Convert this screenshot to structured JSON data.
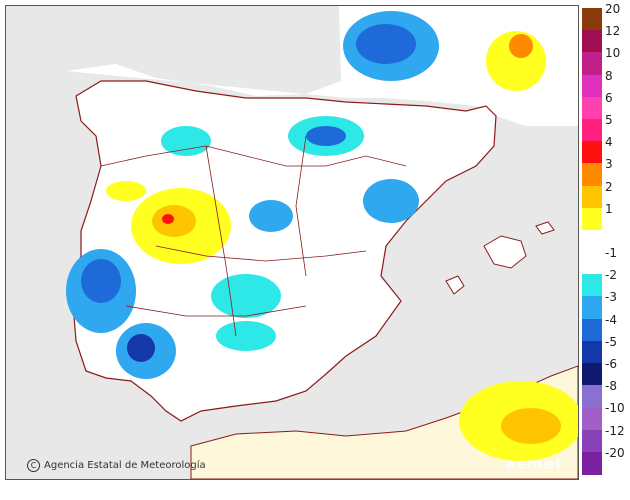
{
  "map": {
    "credit_text": "Agencia Estatal de Meteorología",
    "copyright_symbol": "C",
    "brand_text": "aemet",
    "colors": {
      "sea": "#e8e8e8",
      "land": "#ffffff",
      "africa": "#fff7d9",
      "boundary": "#8b1a1a"
    }
  },
  "legend": {
    "items": [
      {
        "label": "20",
        "color": "#8b3a0a"
      },
      {
        "label": "12",
        "color": "#a01050"
      },
      {
        "label": "10",
        "color": "#c0208a"
      },
      {
        "label": "8",
        "color": "#e030c0"
      },
      {
        "label": "6",
        "color": "#ff40b0"
      },
      {
        "label": "5",
        "color": "#ff2080"
      },
      {
        "label": "4",
        "color": "#ff1010"
      },
      {
        "label": "3",
        "color": "#ff8a00"
      },
      {
        "label": "2",
        "color": "#ffc400"
      },
      {
        "label": "1",
        "color": "#ffff20"
      },
      {
        "label": "",
        "color": "#ffffff"
      },
      {
        "label": "-1",
        "color": "#ffffff"
      },
      {
        "label": "-2",
        "color": "#2ee8e8"
      },
      {
        "label": "-3",
        "color": "#30a8f0"
      },
      {
        "label": "-4",
        "color": "#1e6ad8"
      },
      {
        "label": "-5",
        "color": "#1438a8"
      },
      {
        "label": "-6",
        "color": "#101a70"
      },
      {
        "label": "-8",
        "color": "#8a70d0"
      },
      {
        "label": "-10",
        "color": "#a060c8"
      },
      {
        "label": "-12",
        "color": "#8a40b8"
      },
      {
        "label": "-20",
        "color": "#7a20a0"
      }
    ]
  }
}
